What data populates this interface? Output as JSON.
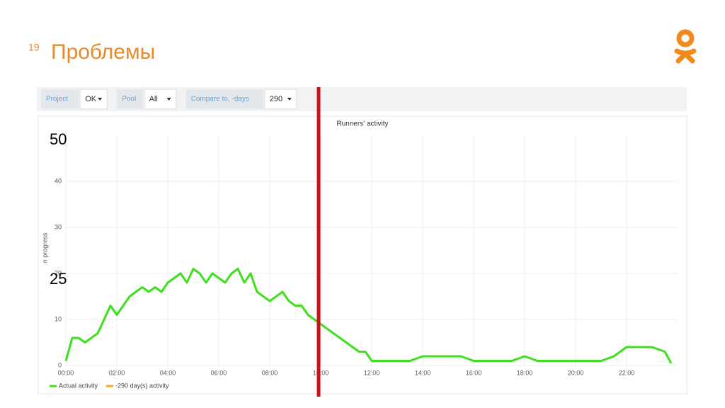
{
  "slide": {
    "number": "19",
    "title": "Проблемы"
  },
  "toolbar": {
    "items": [
      {
        "label": "Project",
        "value": "OK"
      },
      {
        "label": "Pool",
        "value": "All"
      },
      {
        "label": "Compare to, -days",
        "value": "290"
      }
    ]
  },
  "overlay_labels": [
    "50",
    "25"
  ],
  "chart_data": {
    "type": "line",
    "title": "Runners' activity",
    "y_label": "n progress",
    "x": [
      0,
      0.25,
      0.5,
      0.75,
      1,
      1.25,
      1.5,
      1.75,
      2,
      2.25,
      2.5,
      2.75,
      3,
      3.25,
      3.5,
      3.75,
      4,
      4.25,
      4.5,
      4.75,
      5,
      5.25,
      5.5,
      5.75,
      6,
      6.25,
      6.5,
      6.75,
      7,
      7.25,
      7.5,
      7.75,
      8,
      8.25,
      8.5,
      8.75,
      9,
      9.25,
      9.5,
      9.75,
      10,
      10.25,
      10.5,
      10.75,
      11,
      11.25,
      11.5,
      11.75,
      12,
      12.5,
      13,
      13.5,
      14,
      14.5,
      15,
      15.5,
      16,
      16.5,
      17,
      17.5,
      18,
      18.5,
      19,
      19.5,
      20,
      20.5,
      21,
      21.5,
      22,
      22.5,
      23,
      23.5,
      23.75
    ],
    "series": [
      {
        "name": "Actual activity",
        "color": "#3ee01e",
        "values": [
          1,
          6,
          6,
          5,
          6,
          7,
          10,
          13,
          11,
          13,
          15,
          16,
          17,
          16,
          17,
          16,
          18,
          19,
          20,
          18,
          21,
          20,
          18,
          20,
          19,
          18,
          20,
          21,
          18,
          20,
          16,
          15,
          14,
          15,
          16,
          14,
          13,
          13,
          11,
          10,
          9,
          8,
          7,
          6,
          5,
          4,
          3,
          3,
          1,
          1,
          1,
          1,
          2,
          2,
          2,
          2,
          1,
          1,
          1,
          1,
          2,
          1,
          1,
          1,
          1,
          1,
          1,
          2,
          4,
          4,
          4,
          3,
          0.5
        ]
      },
      {
        "name": "-290 day(s) activity",
        "color": "#f5a623",
        "values": [
          null,
          null,
          null,
          null,
          null,
          null,
          null,
          null,
          null,
          null,
          null,
          null,
          null,
          null,
          null,
          null,
          null,
          null,
          null,
          null,
          null,
          null,
          null,
          null,
          null,
          null,
          null,
          null,
          null,
          null,
          null,
          null,
          null,
          null,
          null,
          null,
          null,
          null,
          null,
          null,
          null,
          null,
          null,
          null,
          null,
          null,
          null,
          null,
          null,
          null,
          null,
          null,
          null,
          null,
          null,
          null,
          null,
          null,
          null,
          null,
          null,
          null,
          null,
          null,
          null,
          null,
          null,
          null,
          null,
          null,
          null,
          null,
          null
        ]
      }
    ],
    "xlim": [
      0,
      24
    ],
    "xticks": [
      {
        "value": 0,
        "label": "00:00"
      },
      {
        "value": 2,
        "label": "02:00"
      },
      {
        "value": 4,
        "label": "04:00"
      },
      {
        "value": 6,
        "label": "06:00"
      },
      {
        "value": 8,
        "label": "08:00"
      },
      {
        "value": 10,
        "label": "10:00"
      },
      {
        "value": 12,
        "label": "12:00"
      },
      {
        "value": 14,
        "label": "14:00"
      },
      {
        "value": 16,
        "label": "16:00"
      },
      {
        "value": 18,
        "label": "18:00"
      },
      {
        "value": 20,
        "label": "20:00"
      },
      {
        "value": 22,
        "label": "22:00"
      }
    ],
    "ylim": [
      0,
      50
    ],
    "yticks": [
      0,
      10,
      20,
      30,
      40
    ],
    "grid": true
  }
}
